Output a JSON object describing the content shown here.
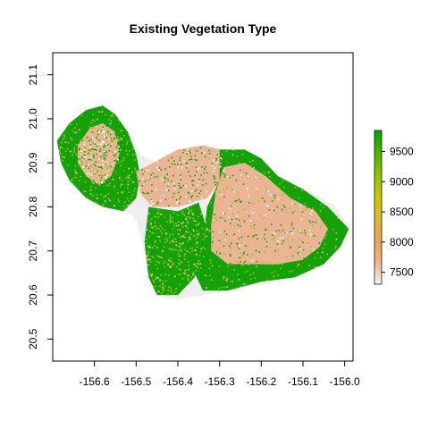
{
  "title": "Existing Vegetation Type",
  "map": {
    "x_range": [
      -156.7,
      -155.98
    ],
    "y_range": [
      20.45,
      21.15
    ],
    "x_ticks": [
      {
        "value": -156.6,
        "label": "-156.6"
      },
      {
        "value": -156.5,
        "label": "-156.5"
      },
      {
        "value": -156.4,
        "label": "-156.4"
      },
      {
        "value": -156.3,
        "label": "-156.3"
      },
      {
        "value": -156.2,
        "label": "-156.2"
      },
      {
        "value": -156.1,
        "label": "-156.1"
      },
      {
        "value": -156.0,
        "label": "-156.0"
      }
    ],
    "y_ticks": [
      {
        "value": 20.5,
        "label": "20.5"
      },
      {
        "value": 20.6,
        "label": "20.6"
      },
      {
        "value": 20.7,
        "label": "20.7"
      },
      {
        "value": 20.8,
        "label": "20.8"
      },
      {
        "value": 20.9,
        "label": "20.9"
      },
      {
        "value": 21.0,
        "label": "21.0"
      },
      {
        "value": 21.1,
        "label": "21.1"
      }
    ],
    "island_regions": [
      {
        "class": "light",
        "coords": [
          [
            -156.69,
            20.95
          ],
          [
            -156.66,
            20.99
          ],
          [
            -156.62,
            21.02
          ],
          [
            -156.58,
            21.03
          ],
          [
            -156.55,
            21.01
          ],
          [
            -156.52,
            20.97
          ],
          [
            -156.49,
            20.92
          ],
          [
            -156.45,
            20.9
          ],
          [
            -156.4,
            20.93
          ],
          [
            -156.34,
            20.94
          ],
          [
            -156.27,
            20.93
          ],
          [
            -156.2,
            20.91
          ],
          [
            -156.16,
            20.86
          ],
          [
            -156.09,
            20.84
          ],
          [
            -156.02,
            20.8
          ],
          [
            -155.99,
            20.75
          ],
          [
            -156.01,
            20.71
          ],
          [
            -156.05,
            20.67
          ],
          [
            -156.12,
            20.64
          ],
          [
            -156.2,
            20.63
          ],
          [
            -156.28,
            20.61
          ],
          [
            -156.34,
            20.6
          ],
          [
            -156.4,
            20.59
          ],
          [
            -156.45,
            20.6
          ],
          [
            -156.47,
            20.64
          ],
          [
            -156.48,
            20.7
          ],
          [
            -156.5,
            20.77
          ],
          [
            -156.52,
            20.79
          ],
          [
            -156.56,
            20.8
          ],
          [
            -156.61,
            20.83
          ],
          [
            -156.66,
            20.86
          ],
          [
            -156.68,
            20.9
          ]
        ]
      },
      {
        "class": "green",
        "coords": [
          [
            -156.69,
            20.95
          ],
          [
            -156.66,
            20.99
          ],
          [
            -156.62,
            21.02
          ],
          [
            -156.58,
            21.03
          ],
          [
            -156.55,
            21.01
          ],
          [
            -156.52,
            20.97
          ],
          [
            -156.5,
            20.92
          ],
          [
            -156.49,
            20.87
          ],
          [
            -156.5,
            20.82
          ],
          [
            -156.53,
            20.79
          ],
          [
            -156.58,
            20.8
          ],
          [
            -156.62,
            20.82
          ],
          [
            -156.66,
            20.86
          ],
          [
            -156.68,
            20.9
          ]
        ]
      },
      {
        "class": "peach",
        "coords": [
          [
            -156.64,
            20.94
          ],
          [
            -156.61,
            20.98
          ],
          [
            -156.58,
            20.99
          ],
          [
            -156.55,
            20.97
          ],
          [
            -156.54,
            20.92
          ],
          [
            -156.56,
            20.87
          ],
          [
            -156.59,
            20.85
          ],
          [
            -156.62,
            20.87
          ],
          [
            -156.64,
            20.9
          ]
        ]
      },
      {
        "class": "peach",
        "coords": [
          [
            -156.5,
            20.88
          ],
          [
            -156.46,
            20.9
          ],
          [
            -156.4,
            20.93
          ],
          [
            -156.34,
            20.94
          ],
          [
            -156.3,
            20.93
          ],
          [
            -156.28,
            20.88
          ],
          [
            -156.33,
            20.82
          ],
          [
            -156.4,
            20.8
          ],
          [
            -156.46,
            20.8
          ],
          [
            -156.49,
            20.83
          ]
        ]
      },
      {
        "class": "green",
        "coords": [
          [
            -156.47,
            20.8
          ],
          [
            -156.4,
            20.79
          ],
          [
            -156.35,
            20.81
          ],
          [
            -156.33,
            20.75
          ],
          [
            -156.34,
            20.69
          ],
          [
            -156.36,
            20.64
          ],
          [
            -156.4,
            20.6
          ],
          [
            -156.45,
            20.6
          ],
          [
            -156.47,
            20.64
          ],
          [
            -156.48,
            20.72
          ]
        ]
      },
      {
        "class": "green",
        "coords": [
          [
            -156.3,
            20.93
          ],
          [
            -156.24,
            20.93
          ],
          [
            -156.2,
            20.91
          ],
          [
            -156.16,
            20.87
          ],
          [
            -156.1,
            20.84
          ],
          [
            -156.04,
            20.8
          ],
          [
            -155.99,
            20.75
          ],
          [
            -156.01,
            20.71
          ],
          [
            -156.05,
            20.67
          ],
          [
            -156.12,
            20.64
          ],
          [
            -156.2,
            20.63
          ],
          [
            -156.28,
            20.61
          ],
          [
            -156.34,
            20.61
          ],
          [
            -156.36,
            20.65
          ],
          [
            -156.34,
            20.72
          ],
          [
            -156.33,
            20.8
          ],
          [
            -156.3,
            20.86
          ]
        ]
      },
      {
        "class": "peach",
        "coords": [
          [
            -156.29,
            20.89
          ],
          [
            -156.24,
            20.9
          ],
          [
            -156.19,
            20.87
          ],
          [
            -156.13,
            20.82
          ],
          [
            -156.07,
            20.79
          ],
          [
            -156.04,
            20.75
          ],
          [
            -156.06,
            20.71
          ],
          [
            -156.1,
            20.68
          ],
          [
            -156.16,
            20.67
          ],
          [
            -156.22,
            20.67
          ],
          [
            -156.28,
            20.67
          ],
          [
            -156.32,
            20.7
          ],
          [
            -156.32,
            20.76
          ],
          [
            -156.31,
            20.83
          ]
        ]
      }
    ]
  },
  "legend": {
    "value_range": [
      7300,
      9850
    ],
    "ticks": [
      {
        "value": 7500,
        "label": "7500"
      },
      {
        "value": 8000,
        "label": "8000"
      },
      {
        "value": 8500,
        "label": "8500"
      },
      {
        "value": 9000,
        "label": "9000"
      },
      {
        "value": 9500,
        "label": "9500"
      }
    ],
    "colors": [
      "#F2F2F2",
      "#EBB58C",
      "#E7A45A",
      "#E0BA2E",
      "#C9C800",
      "#8FC400",
      "#4CB300",
      "#00A600"
    ]
  },
  "colors": {
    "light": "#EEEEEE",
    "peach": "#EBB595",
    "green": "#14A10A",
    "yellow_green": "#9DC41A"
  }
}
